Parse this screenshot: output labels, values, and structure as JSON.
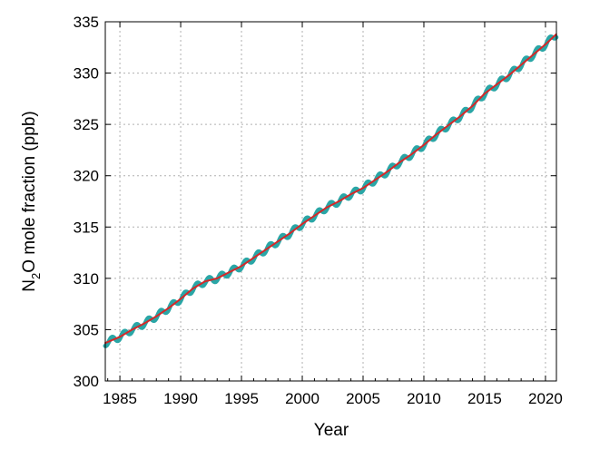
{
  "chart_data": {
    "type": "line",
    "title": "",
    "xlabel": "Year",
    "ylabel_main": "N",
    "ylabel_sub": "2",
    "ylabel_rest": "O mole fraction (ppb)",
    "xlim": [
      1983.8,
      2020.9
    ],
    "ylim": [
      300,
      335
    ],
    "xticks": [
      1985,
      1990,
      1995,
      2000,
      2005,
      2010,
      2015,
      2020
    ],
    "yticks": [
      300,
      305,
      310,
      315,
      320,
      325,
      330,
      335
    ],
    "grid": true,
    "legend": "none",
    "series": [
      {
        "color": "#2aa6a6",
        "style": "monthly-thick",
        "seasonal_amplitude": 0.3,
        "x": [
          1983.8,
          1985,
          1986,
          1987,
          1988,
          1989,
          1990,
          1991,
          1992,
          1993,
          1994,
          1995,
          1996,
          1997,
          1998,
          1999,
          2000,
          2001,
          2002,
          2003,
          2004,
          2005,
          2006,
          2007,
          2008,
          2009,
          2010,
          2011,
          2012,
          2013,
          2014,
          2015,
          2016,
          2017,
          2018,
          2019,
          2020,
          2020.9
        ],
        "y": [
          303.7,
          304.3,
          305.0,
          305.6,
          306.3,
          307.1,
          308.0,
          309.0,
          309.7,
          310.0,
          310.6,
          311.2,
          312.0,
          312.8,
          313.6,
          314.4,
          315.3,
          316.1,
          316.9,
          317.5,
          318.2,
          318.8,
          319.6,
          320.4,
          321.3,
          322.1,
          323.0,
          324.0,
          324.9,
          325.8,
          326.8,
          328.0,
          328.9,
          329.8,
          330.8,
          331.8,
          332.8,
          333.8
        ]
      },
      {
        "color": "#d62728",
        "style": "trend",
        "seasonal_amplitude": 0,
        "x": [
          1983.8,
          1985,
          1986,
          1987,
          1988,
          1989,
          1990,
          1991,
          1992,
          1993,
          1994,
          1995,
          1996,
          1997,
          1998,
          1999,
          2000,
          2001,
          2002,
          2003,
          2004,
          2005,
          2006,
          2007,
          2008,
          2009,
          2010,
          2011,
          2012,
          2013,
          2014,
          2015,
          2016,
          2017,
          2018,
          2019,
          2020,
          2020.9
        ],
        "y": [
          303.7,
          304.3,
          305.0,
          305.6,
          306.3,
          307.1,
          308.0,
          309.0,
          309.7,
          310.0,
          310.6,
          311.2,
          312.0,
          312.8,
          313.6,
          314.4,
          315.3,
          316.1,
          316.9,
          317.5,
          318.2,
          318.8,
          319.6,
          320.4,
          321.3,
          322.1,
          323.0,
          324.0,
          324.9,
          325.8,
          326.8,
          328.0,
          328.9,
          329.8,
          330.8,
          331.8,
          332.8,
          333.8
        ]
      }
    ]
  }
}
